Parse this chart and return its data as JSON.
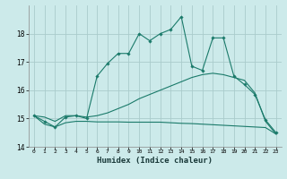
{
  "xlabel": "Humidex (Indice chaleur)",
  "bg_color": "#cceaea",
  "grid_color": "#aacccc",
  "line_color": "#1a7a6a",
  "x_values": [
    0,
    1,
    2,
    3,
    4,
    5,
    6,
    7,
    8,
    9,
    10,
    11,
    12,
    13,
    14,
    15,
    16,
    17,
    18,
    19,
    20,
    21,
    22,
    23
  ],
  "main_series": [
    15.1,
    14.9,
    14.7,
    15.05,
    15.1,
    15.0,
    16.5,
    16.95,
    17.3,
    17.3,
    18.0,
    17.75,
    18.0,
    18.15,
    18.6,
    16.85,
    16.7,
    17.85,
    17.85,
    16.5,
    16.2,
    15.85,
    14.95,
    14.5
  ],
  "line_upper": [
    15.1,
    15.05,
    14.9,
    15.1,
    15.1,
    15.05,
    15.1,
    15.2,
    15.35,
    15.5,
    15.7,
    15.85,
    16.0,
    16.15,
    16.3,
    16.45,
    16.55,
    16.6,
    16.55,
    16.45,
    16.35,
    15.9,
    14.9,
    14.45
  ],
  "line_lower": [
    15.1,
    14.8,
    14.7,
    14.85,
    14.9,
    14.9,
    14.88,
    14.88,
    14.88,
    14.87,
    14.87,
    14.87,
    14.87,
    14.85,
    14.83,
    14.82,
    14.8,
    14.78,
    14.76,
    14.74,
    14.72,
    14.7,
    14.68,
    14.45
  ],
  "ylim": [
    14.0,
    19.0
  ],
  "yticks": [
    14,
    15,
    16,
    17,
    18
  ],
  "xlim": [
    -0.5,
    23.5
  ]
}
